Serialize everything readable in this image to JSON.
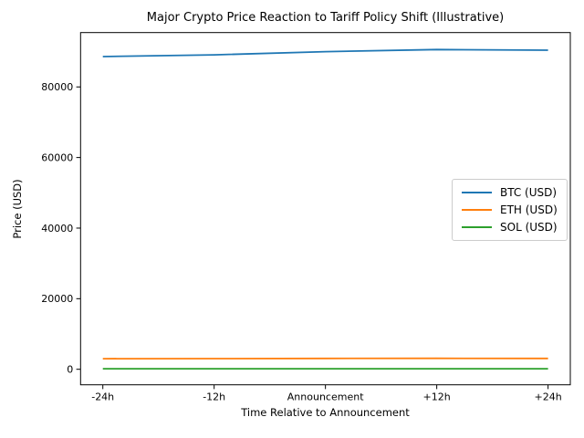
{
  "chart_data": {
    "type": "line",
    "title": "Major Crypto Price Reaction to Tariff Policy Shift (Illustrative)",
    "xlabel": "Time Relative to Announcement",
    "ylabel": "Price (USD)",
    "categories": [
      "-24h",
      "-12h",
      "Announcement",
      "+12h",
      "+24h"
    ],
    "series": [
      {
        "name": "BTC (USD)",
        "color": "#1f77b4",
        "values": [
          88600,
          89100,
          90000,
          90600,
          90400
        ]
      },
      {
        "name": "ETH (USD)",
        "color": "#ff7f0e",
        "values": [
          3000,
          3020,
          3060,
          3090,
          3070
        ]
      },
      {
        "name": "SOL (USD)",
        "color": "#2ca02c",
        "values": [
          145,
          146,
          150,
          152,
          151
        ]
      }
    ],
    "yticks": [
      0,
      20000,
      40000,
      60000,
      80000
    ],
    "ylim": [
      -4400,
      95400
    ],
    "grid": false,
    "legend_position": "center-right",
    "background": "#ffffff",
    "axis_color": "#000000"
  }
}
